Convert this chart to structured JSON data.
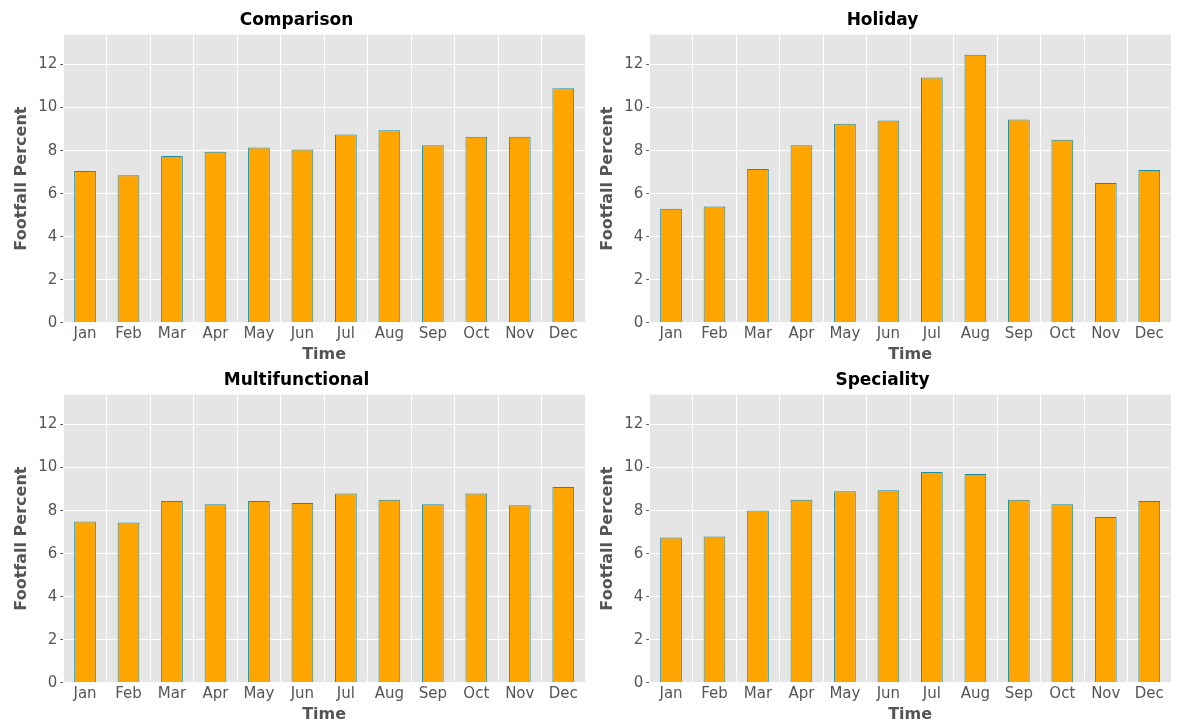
{
  "chart_data": [
    {
      "type": "bar",
      "title": "Comparison",
      "xlabel": "Time",
      "ylabel": "Footfall Percent",
      "categories": [
        "Jan",
        "Feb",
        "Mar",
        "Apr",
        "May",
        "Jun",
        "Jul",
        "Aug",
        "Sep",
        "Oct",
        "Nov",
        "Dec"
      ],
      "color": "#ffa500",
      "values": [
        7.05,
        6.85,
        7.75,
        7.95,
        8.15,
        8.05,
        8.75,
        8.95,
        8.25,
        8.65,
        8.65,
        10.9
      ],
      "ylim": [
        0,
        13.4
      ],
      "yticks": [
        0,
        2,
        4,
        6,
        8,
        10,
        12
      ],
      "grid": true
    },
    {
      "type": "bar",
      "title": "Holiday",
      "xlabel": "Time",
      "ylabel": "Footfall Percent",
      "categories": [
        "Jan",
        "Feb",
        "Mar",
        "Apr",
        "May",
        "Jun",
        "Jul",
        "Aug",
        "Sep",
        "Oct",
        "Nov",
        "Dec"
      ],
      "color": "#ffa500",
      "values": [
        5.3,
        5.4,
        7.15,
        8.25,
        9.25,
        9.4,
        11.4,
        12.45,
        9.45,
        8.5,
        6.5,
        7.1
      ],
      "ylim": [
        0,
        13.4
      ],
      "yticks": [
        0,
        2,
        4,
        6,
        8,
        10,
        12
      ],
      "grid": true
    },
    {
      "type": "bar",
      "title": "Multifunctional",
      "xlabel": "Time",
      "ylabel": "Footfall Percent",
      "categories": [
        "Jan",
        "Feb",
        "Mar",
        "Apr",
        "May",
        "Jun",
        "Jul",
        "Aug",
        "Sep",
        "Oct",
        "Nov",
        "Dec"
      ],
      "color": "#ffa500",
      "values": [
        7.5,
        7.45,
        8.45,
        8.3,
        8.45,
        8.35,
        8.8,
        8.5,
        8.3,
        8.8,
        8.25,
        9.1
      ],
      "ylim": [
        0,
        13.4
      ],
      "yticks": [
        0,
        2,
        4,
        6,
        8,
        10,
        12
      ],
      "grid": true
    },
    {
      "type": "bar",
      "title": "Speciality",
      "xlabel": "Time",
      "ylabel": "Footfall Percent",
      "categories": [
        "Jan",
        "Feb",
        "Mar",
        "Apr",
        "May",
        "Jun",
        "Jul",
        "Aug",
        "Sep",
        "Oct",
        "Nov",
        "Dec"
      ],
      "color": "#ffa500",
      "values": [
        6.75,
        6.8,
        8.0,
        8.5,
        8.9,
        8.95,
        9.8,
        9.7,
        8.5,
        8.3,
        7.7,
        8.45
      ],
      "ylim": [
        0,
        13.4
      ],
      "yticks": [
        0,
        2,
        4,
        6,
        8,
        10,
        12
      ],
      "grid": true
    }
  ]
}
